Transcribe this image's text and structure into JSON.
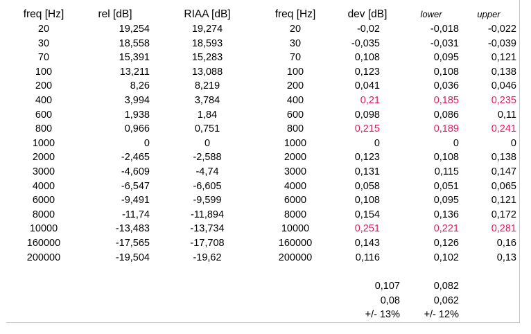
{
  "headers": [
    "freq [Hz]",
    "rel [dB]",
    "RIAA [dB]",
    "freq [Hz]",
    "dev [dB]",
    "lower",
    "upper"
  ],
  "colors": {
    "highlight": "#e0185a",
    "text": "#000000",
    "grid": "#c8c8c8"
  },
  "rows": [
    {
      "freq": "20",
      "rel": "19,254",
      "riaa": "19,274",
      "freq2": "20",
      "dev": "-0,02",
      "lower": "-0,018",
      "upper": "-0,022",
      "highlight": false
    },
    {
      "freq": "30",
      "rel": "18,558",
      "riaa": "18,593",
      "freq2": "30",
      "dev": "-0,035",
      "lower": "-0,031",
      "upper": "-0,039",
      "highlight": false
    },
    {
      "freq": "70",
      "rel": "15,391",
      "riaa": "15,283",
      "freq2": "70",
      "dev": "0,108",
      "lower": "0,095",
      "upper": "0,121",
      "highlight": false
    },
    {
      "freq": "100",
      "rel": "13,211",
      "riaa": "13,088",
      "freq2": "100",
      "dev": "0,123",
      "lower": "0,108",
      "upper": "0,138",
      "highlight": false
    },
    {
      "freq": "200",
      "rel": "8,26",
      "riaa": "8,219",
      "freq2": "200",
      "dev": "0,041",
      "lower": "0,036",
      "upper": "0,046",
      "highlight": false
    },
    {
      "freq": "400",
      "rel": "3,994",
      "riaa": "3,784",
      "freq2": "400",
      "dev": "0,21",
      "lower": "0,185",
      "upper": "0,235",
      "highlight": true
    },
    {
      "freq": "600",
      "rel": "1,938",
      "riaa": "1,84",
      "freq2": "600",
      "dev": "0,098",
      "lower": "0,086",
      "upper": "0,11",
      "highlight": false
    },
    {
      "freq": "800",
      "rel": "0,966",
      "riaa": "0,751",
      "freq2": "800",
      "dev": "0,215",
      "lower": "0,189",
      "upper": "0,241",
      "highlight": true
    },
    {
      "freq": "1000",
      "rel": "0",
      "riaa": "0",
      "freq2": "1000",
      "dev": "0",
      "lower": "0",
      "upper": "0",
      "highlight": false
    },
    {
      "freq": "2000",
      "rel": "-2,465",
      "riaa": "-2,588",
      "freq2": "2000",
      "dev": "0,123",
      "lower": "0,108",
      "upper": "0,138",
      "highlight": false
    },
    {
      "freq": "3000",
      "rel": "-4,609",
      "riaa": "-4,74",
      "freq2": "3000",
      "dev": "0,131",
      "lower": "0,115",
      "upper": "0,147",
      "highlight": false
    },
    {
      "freq": "4000",
      "rel": "-6,547",
      "riaa": "-6,605",
      "freq2": "4000",
      "dev": "0,058",
      "lower": "0,051",
      "upper": "0,065",
      "highlight": false
    },
    {
      "freq": "6000",
      "rel": "-9,491",
      "riaa": "-9,599",
      "freq2": "6000",
      "dev": "0,108",
      "lower": "0,095",
      "upper": "0,121",
      "highlight": false
    },
    {
      "freq": "8000",
      "rel": "-11,74",
      "riaa": "-11,894",
      "freq2": "8000",
      "dev": "0,154",
      "lower": "0,136",
      "upper": "0,172",
      "highlight": false
    },
    {
      "freq": "10000",
      "rel": "-13,483",
      "riaa": "-13,734",
      "freq2": "10000",
      "dev": "0,251",
      "lower": "0,221",
      "upper": "0,281",
      "highlight": true
    },
    {
      "freq": "160000",
      "rel": "-17,565",
      "riaa": "-17,708",
      "freq2": "160000",
      "dev": "0,143",
      "lower": "0,126",
      "upper": "0,16",
      "highlight": false
    },
    {
      "freq": "200000",
      "rel": "-19,504",
      "riaa": "-19,62",
      "freq2": "200000",
      "dev": "0,116",
      "lower": "0,102",
      "upper": "0,13",
      "highlight": false
    }
  ],
  "summary": [
    {
      "dev": "0,107",
      "lower": "0,082"
    },
    {
      "dev": "0,08",
      "lower": "0,062"
    },
    {
      "dev": "+/- 13%",
      "lower": "+/- 12%"
    }
  ]
}
